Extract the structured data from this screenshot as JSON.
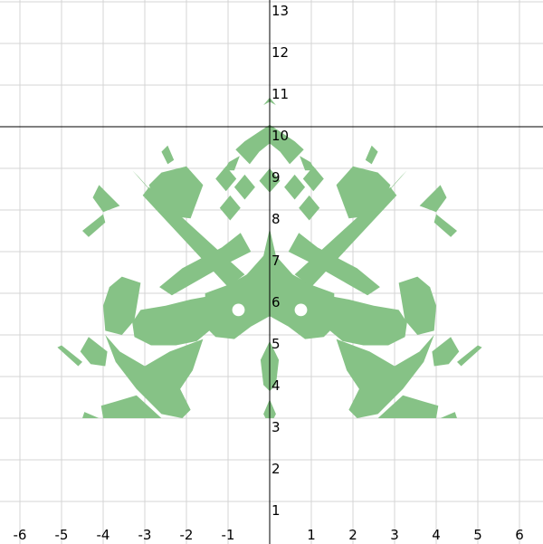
{
  "chart_data": {
    "type": "area",
    "title": "",
    "xlabel": "",
    "ylabel": "",
    "xlim": [
      -6.5,
      6.5
    ],
    "ylim": [
      0,
      13.1
    ],
    "grid": true,
    "fill_color": "#86c286",
    "grid_color": "#d4d4d4",
    "axis_color": "#000000",
    "x_ticks": [
      -6,
      -5,
      -4,
      -3,
      -2,
      -1,
      1,
      2,
      3,
      4,
      5,
      6
    ],
    "y_ticks": [
      1,
      2,
      3,
      4,
      5,
      6,
      7,
      8,
      9,
      10,
      11,
      12,
      13
    ],
    "x_tick_labels": [
      "-6",
      "-5",
      "-4",
      "-3",
      "-2",
      "-1",
      "1",
      "2",
      "3",
      "4",
      "5",
      "6"
    ],
    "y_tick_labels": [
      "1",
      "2",
      "3",
      "4",
      "5",
      "6",
      "7",
      "8",
      "9",
      "10",
      "11",
      "12",
      "13"
    ],
    "horizontal_reference_line": {
      "y": 10
    },
    "symmetry_axis": 0,
    "regions_right_half": [
      {
        "name": "top-chevron",
        "points": [
          [
            0,
            10.7
          ],
          [
            0.15,
            10.52
          ],
          [
            0,
            10.6
          ]
        ]
      },
      {
        "name": "crown-outer",
        "points": [
          [
            0,
            10.05
          ],
          [
            0.6,
            9.65
          ],
          [
            0.82,
            9.45
          ],
          [
            0.48,
            9.1
          ],
          [
            0.25,
            9.4
          ],
          [
            0,
            9.6
          ]
        ]
      },
      {
        "name": "crown-center",
        "points": [
          [
            0,
            9.0
          ],
          [
            0.25,
            8.7
          ],
          [
            0,
            8.42
          ]
        ]
      },
      {
        "name": "diamond-1",
        "points": [
          [
            0.6,
            8.85
          ],
          [
            0.85,
            8.55
          ],
          [
            0.6,
            8.25
          ],
          [
            0.35,
            8.55
          ]
        ]
      },
      {
        "name": "diamond-2",
        "points": [
          [
            0.95,
            8.35
          ],
          [
            1.2,
            8.05
          ],
          [
            0.95,
            7.75
          ],
          [
            0.7,
            8.05
          ]
        ]
      },
      {
        "name": "diamond-3",
        "points": [
          [
            1.05,
            9.05
          ],
          [
            1.3,
            8.75
          ],
          [
            1.05,
            8.45
          ],
          [
            0.8,
            8.75
          ]
        ]
      },
      {
        "name": "small-lobe",
        "points": [
          [
            0.72,
            9.3
          ],
          [
            0.98,
            9.15
          ],
          [
            1.1,
            8.95
          ],
          [
            0.85,
            8.95
          ]
        ]
      },
      {
        "name": "upper-wing",
        "points": [
          [
            1.6,
            8.6
          ],
          [
            2.0,
            9.05
          ],
          [
            2.6,
            8.9
          ],
          [
            2.9,
            8.6
          ],
          [
            2.8,
            8.35
          ],
          [
            2.35,
            7.85
          ],
          [
            1.9,
            7.8
          ]
        ]
      },
      {
        "name": "wing-flag",
        "points": [
          [
            2.9,
            8.5
          ],
          [
            3.3,
            8.95
          ],
          [
            3.15,
            8.8
          ],
          [
            2.75,
            8.35
          ]
        ]
      },
      {
        "name": "ear-top",
        "points": [
          [
            2.3,
            9.2
          ],
          [
            2.45,
            9.55
          ],
          [
            2.6,
            9.4
          ],
          [
            2.45,
            9.1
          ]
        ]
      },
      {
        "name": "outer-fin",
        "points": [
          [
            3.6,
            8.1
          ],
          [
            4.1,
            8.6
          ],
          [
            4.25,
            8.3
          ],
          [
            4.0,
            7.95
          ]
        ]
      },
      {
        "name": "far-fin",
        "points": [
          [
            4.0,
            7.9
          ],
          [
            4.5,
            7.5
          ],
          [
            4.35,
            7.35
          ],
          [
            3.95,
            7.7
          ]
        ]
      },
      {
        "name": "center-body",
        "points": [
          [
            0,
            7.55
          ],
          [
            0.15,
            6.9
          ],
          [
            0.55,
            6.45
          ],
          [
            1.0,
            6.2
          ],
          [
            1.55,
            6.0
          ],
          [
            1.55,
            5.2
          ],
          [
            1.3,
            4.95
          ],
          [
            0.85,
            4.9
          ],
          [
            0.45,
            5.2
          ],
          [
            0,
            5.45
          ],
          [
            0,
            6.6
          ]
        ]
      },
      {
        "name": "center-neck",
        "points": [
          [
            0,
            4.85
          ],
          [
            0.22,
            4.4
          ],
          [
            0.15,
            3.8
          ],
          [
            0,
            3.65
          ]
        ]
      },
      {
        "name": "center-foot",
        "points": [
          [
            0,
            3.45
          ],
          [
            0.15,
            3.1
          ],
          [
            0.1,
            3.0
          ],
          [
            0,
            3.0
          ]
        ]
      },
      {
        "name": "diagonal-band",
        "points": [
          [
            0.7,
            7.45
          ],
          [
            1.15,
            7.1
          ],
          [
            2.1,
            6.6
          ],
          [
            2.65,
            6.15
          ],
          [
            2.35,
            5.95
          ],
          [
            1.65,
            6.35
          ],
          [
            0.95,
            6.75
          ],
          [
            0.45,
            7.0
          ]
        ]
      },
      {
        "name": "long-diagonal",
        "points": [
          [
            0.6,
            6.45
          ],
          [
            2.9,
            8.55
          ],
          [
            3.05,
            8.35
          ],
          [
            1.0,
            6.15
          ]
        ]
      },
      {
        "name": "shoulder",
        "points": [
          [
            1.35,
            5.95
          ],
          [
            1.9,
            5.85
          ],
          [
            2.5,
            5.7
          ],
          [
            3.1,
            5.6
          ],
          [
            3.3,
            5.3
          ],
          [
            3.25,
            4.95
          ],
          [
            2.85,
            4.75
          ],
          [
            2.25,
            4.75
          ],
          [
            1.75,
            4.85
          ],
          [
            1.45,
            5.1
          ]
        ]
      },
      {
        "name": "side-lobe",
        "points": [
          [
            3.1,
            6.25
          ],
          [
            3.55,
            6.4
          ],
          [
            3.85,
            6.15
          ],
          [
            4.0,
            5.7
          ],
          [
            3.95,
            5.1
          ],
          [
            3.55,
            5.0
          ],
          [
            3.25,
            5.35
          ]
        ]
      },
      {
        "name": "lower-wing",
        "points": [
          [
            1.6,
            4.9
          ],
          [
            2.4,
            4.6
          ],
          [
            3.0,
            4.25
          ],
          [
            3.6,
            4.6
          ],
          [
            3.95,
            5.0
          ],
          [
            3.7,
            4.35
          ],
          [
            3.2,
            3.7
          ],
          [
            2.6,
            3.1
          ],
          [
            2.1,
            3.0
          ],
          [
            1.9,
            3.2
          ],
          [
            2.15,
            3.7
          ],
          [
            1.85,
            4.15
          ]
        ]
      },
      {
        "name": "lower-flap",
        "points": [
          [
            2.6,
            3.0
          ],
          [
            3.2,
            3.55
          ],
          [
            3.7,
            3.4
          ],
          [
            4.05,
            3.3
          ],
          [
            4.0,
            3.0
          ]
        ]
      },
      {
        "name": "outer-drop",
        "points": [
          [
            3.9,
            4.6
          ],
          [
            4.35,
            4.95
          ],
          [
            4.55,
            4.6
          ],
          [
            4.3,
            4.3
          ],
          [
            3.95,
            4.25
          ]
        ]
      },
      {
        "name": "outer-spike",
        "points": [
          [
            4.5,
            4.35
          ],
          [
            5.0,
            4.75
          ],
          [
            5.1,
            4.7
          ],
          [
            4.6,
            4.25
          ]
        ]
      },
      {
        "name": "base-tab",
        "points": [
          [
            4.1,
            3.0
          ],
          [
            4.45,
            3.15
          ],
          [
            4.5,
            3.0
          ]
        ]
      }
    ],
    "holes_right_half": [
      {
        "name": "eye",
        "center": [
          0.75,
          5.6
        ],
        "radius": 0.15
      }
    ]
  }
}
